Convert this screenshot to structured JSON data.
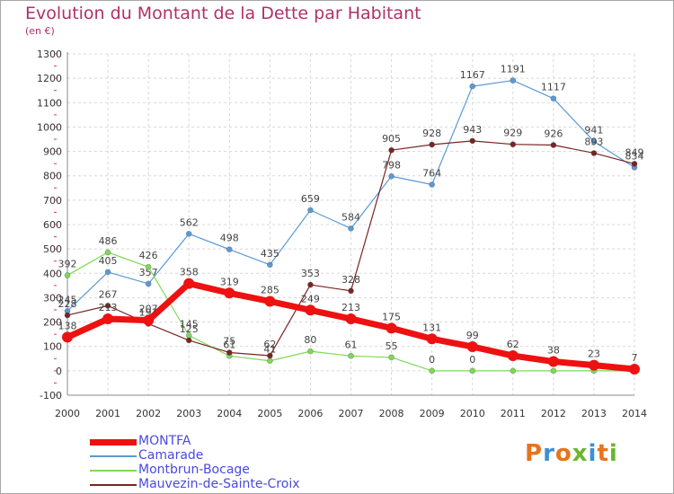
{
  "header": {
    "title": "Evolution du Montant de la Dette par Habitant",
    "unit": "(en €)"
  },
  "brand": {
    "text": "Proxiti",
    "colors": [
      "#e8731c",
      "#3c8fd6",
      "#e8731c",
      "#6bb52f",
      "#3c8fd6",
      "#e8731c",
      "#6bb52f"
    ]
  },
  "chart_data": {
    "type": "line",
    "title": "Evolution du Montant de la Dette par Habitant",
    "ylabel": "(en €)",
    "ylim": [
      -100,
      1300
    ],
    "yticks": [
      -100,
      0,
      100,
      200,
      300,
      400,
      500,
      600,
      700,
      800,
      900,
      1000,
      1100,
      1200,
      1300
    ],
    "grid": true,
    "legend_position": "bottom-left",
    "x": [
      "2000",
      "2001",
      "2002",
      "2003",
      "2004",
      "2005",
      "2006",
      "2007",
      "2008",
      "2009",
      "2010",
      "2011",
      "2012",
      "2013",
      "2014"
    ],
    "series": [
      {
        "name": "Camarade",
        "color": "#5b9ad6",
        "width": 1.2,
        "marker": 3,
        "values": [
          245,
          405,
          357,
          562,
          498,
          435,
          659,
          584,
          798,
          764,
          1167,
          1191,
          1117,
          941,
          834
        ],
        "labels": [
          "245",
          "405",
          "357",
          "562",
          "498",
          "435",
          "659",
          "584",
          "798",
          "764",
          "1167",
          "1191",
          "1117",
          "941",
          "834"
        ]
      },
      {
        "name": "Montbrun-Bocage",
        "color": "#7ed957",
        "width": 1.2,
        "marker": 3,
        "values": [
          392,
          486,
          426,
          145,
          61,
          41,
          80,
          61,
          55,
          0,
          0,
          0,
          0,
          0,
          0
        ],
        "labels": [
          "392",
          "486",
          "426",
          "145",
          "61",
          "41",
          "80",
          "61",
          "55",
          "0",
          "0",
          "",
          "",
          "",
          ""
        ]
      },
      {
        "name": "Mauvezin-de-Sainte-Croix",
        "color": "#7a2424",
        "width": 1.2,
        "marker": 3,
        "values": [
          228,
          267,
          193,
          125,
          75,
          62,
          353,
          328,
          905,
          928,
          943,
          929,
          926,
          893,
          849
        ],
        "labels": [
          "228",
          "267",
          "193",
          "125",
          "75",
          "62",
          "353",
          "328",
          "905",
          "928",
          "943",
          "929",
          "926",
          "893",
          "849"
        ]
      },
      {
        "name": "MONTFA",
        "color": "#ee1111",
        "width": 7,
        "marker": 6,
        "values": [
          138,
          213,
          207,
          358,
          319,
          285,
          249,
          213,
          175,
          131,
          99,
          62,
          38,
          23,
          7
        ],
        "labels": [
          "138",
          "213",
          "207",
          "358",
          "319",
          "285",
          "249",
          "213",
          "175",
          "131",
          "99",
          "62",
          "38",
          "23",
          "7"
        ]
      }
    ]
  },
  "legend": {
    "items": [
      {
        "label": "MONTFA",
        "color": "#ee1111",
        "thickness": 7
      },
      {
        "label": "Camarade",
        "color": "#5b9ad6",
        "thickness": 2
      },
      {
        "label": "Montbrun-Bocage",
        "color": "#7ed957",
        "thickness": 2
      },
      {
        "label": "Mauvezin-de-Sainte-Croix",
        "color": "#7a2424",
        "thickness": 2
      }
    ]
  }
}
